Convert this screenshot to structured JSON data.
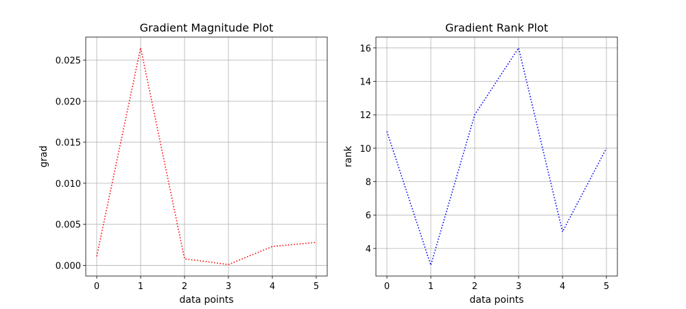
{
  "chart_data": [
    {
      "type": "line",
      "title": "Gradient Magnitude Plot",
      "xlabel": "data points",
      "ylabel": "grad",
      "x": [
        0,
        1,
        2,
        3,
        4,
        5
      ],
      "series": [
        {
          "values": [
            0.0011,
            0.0265,
            0.0008,
            0.0001,
            0.0023,
            0.0028
          ],
          "color": "#ff0000",
          "style": "dotted"
        }
      ],
      "xlim": [
        -0.25,
        5.25
      ],
      "ylim": [
        -0.0013,
        0.0278
      ],
      "xticks": [
        0,
        1,
        2,
        3,
        4,
        5
      ],
      "xtick_labels": [
        "0",
        "1",
        "2",
        "3",
        "4",
        "5"
      ],
      "yticks": [
        0,
        0.005,
        0.01,
        0.015,
        0.02,
        0.025
      ],
      "ytick_labels": [
        "0.000",
        "0.005",
        "0.010",
        "0.015",
        "0.020",
        "0.025"
      ],
      "grid": true
    },
    {
      "type": "line",
      "title": "Gradient Rank Plot",
      "xlabel": "data points",
      "ylabel": "rank",
      "x": [
        0,
        1,
        2,
        3,
        4,
        5
      ],
      "series": [
        {
          "values": [
            11,
            3,
            12,
            16,
            5,
            10
          ],
          "color": "#0000ff",
          "style": "dotted"
        }
      ],
      "xlim": [
        -0.25,
        5.25
      ],
      "ylim": [
        2.35,
        16.65
      ],
      "xticks": [
        0,
        1,
        2,
        3,
        4,
        5
      ],
      "xtick_labels": [
        "0",
        "1",
        "2",
        "3",
        "4",
        "5"
      ],
      "yticks": [
        4,
        6,
        8,
        10,
        12,
        14,
        16
      ],
      "ytick_labels": [
        "4",
        "6",
        "8",
        "10",
        "12",
        "14",
        "16"
      ],
      "grid": true
    }
  ]
}
